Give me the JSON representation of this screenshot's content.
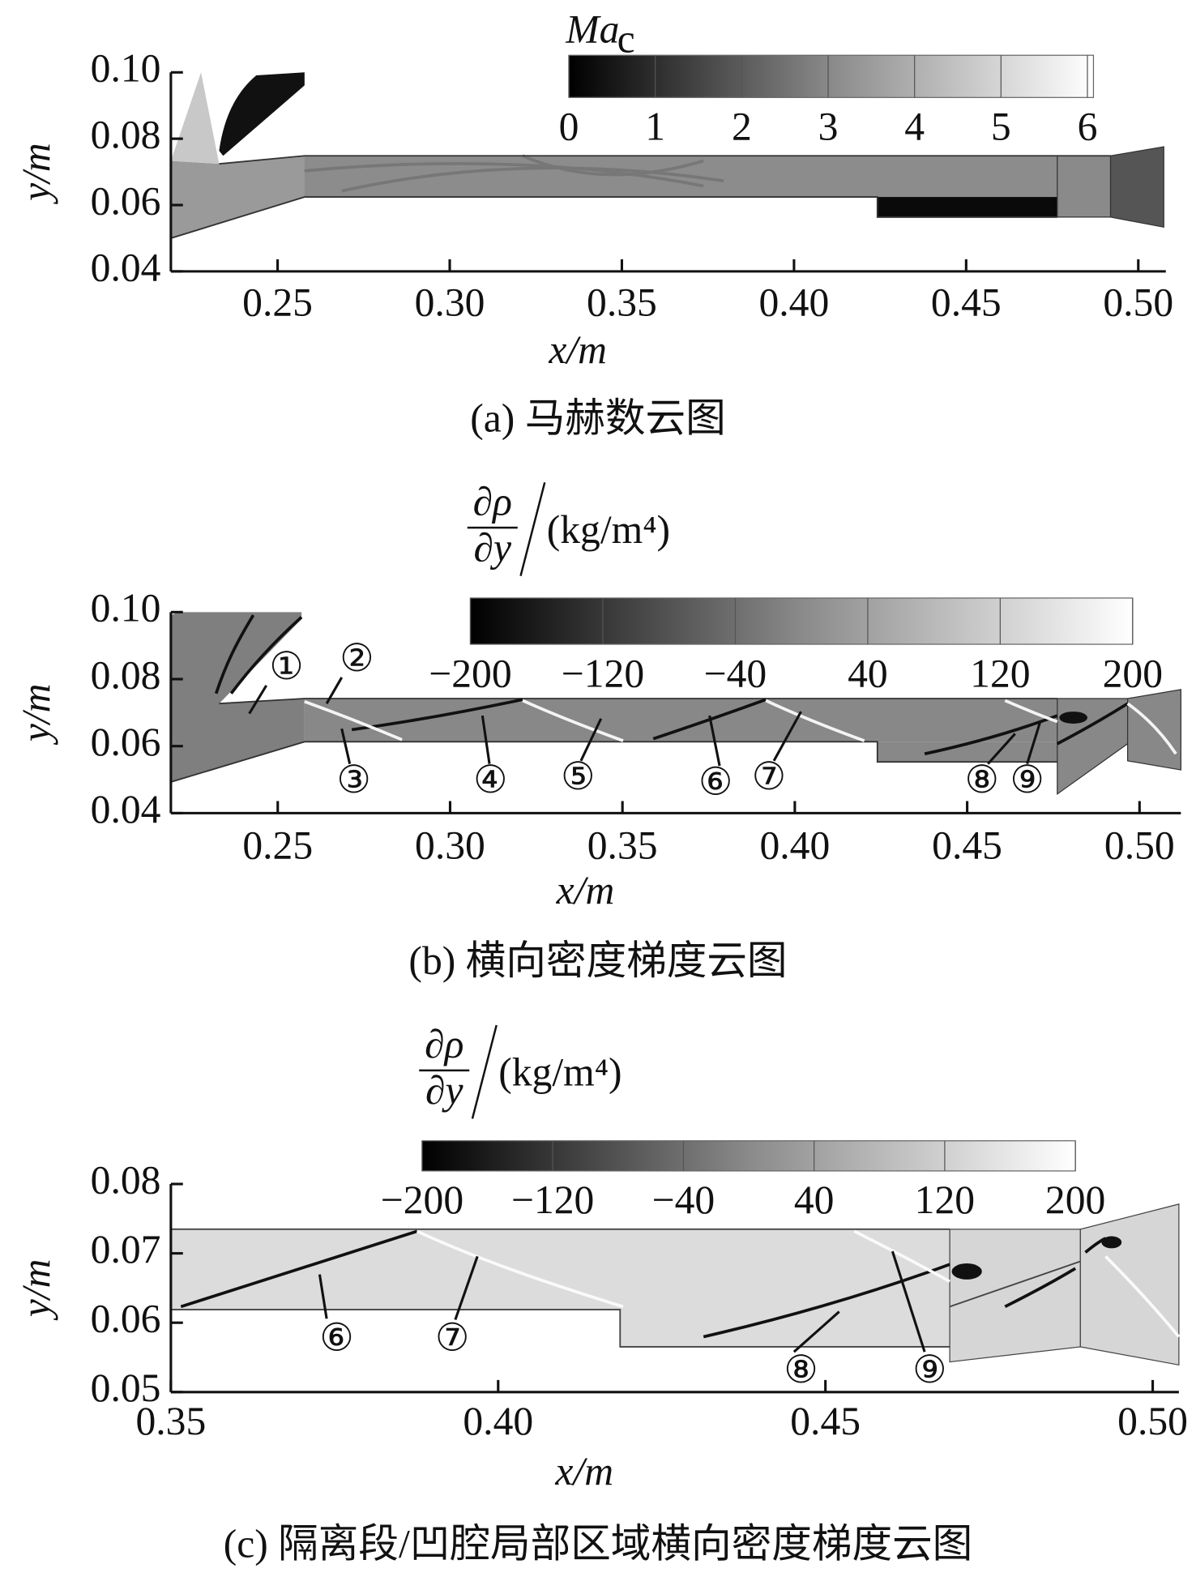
{
  "chart_data": [
    {
      "type": "contour",
      "caption": "(a) 马赫数云图",
      "x_label": "x/m",
      "y_label": "y/m",
      "xlim": [
        0.219,
        0.508
      ],
      "ylim": [
        0.04,
        0.1
      ],
      "xticks": [
        0.25,
        {
          "value": 0.3,
          "label": "0.30"
        },
        0.35,
        {
          "value": 0.4,
          "label": "0.40"
        },
        0.45,
        {
          "value": 0.5,
          "label": "0.50"
        }
      ],
      "yticks": [
        0.04,
        0.06,
        0.08,
        {
          "value": 0.1,
          "label": "0.10"
        }
      ],
      "colorbar": {
        "title": "Ma",
        "title_subscript": "c",
        "lim": [
          0,
          6.07
        ],
        "ticks": [
          0,
          1,
          2,
          3,
          4,
          5,
          6
        ]
      },
      "annotations": []
    },
    {
      "type": "contour",
      "caption": "(b) 横向密度梯度云图",
      "x_label": "x/m",
      "y_label": "y/m",
      "xlim": [
        0.219,
        0.512
      ],
      "ylim": [
        0.04,
        0.1
      ],
      "xticks": [
        0.25,
        {
          "value": 0.3,
          "label": "0.30"
        },
        0.35,
        {
          "value": 0.4,
          "label": "0.40"
        },
        0.45,
        {
          "value": 0.5,
          "label": "0.50"
        }
      ],
      "yticks": [
        0.04,
        0.06,
        0.08,
        {
          "value": 0.1,
          "label": "0.10"
        }
      ],
      "colorbar": {
        "title_numerator": "∂ρ",
        "title_denominator": "∂y",
        "title_unit": "(kg/m⁴)",
        "lim": [
          -200,
          200
        ],
        "ticks": [
          {
            "value": -200,
            "label": "−200"
          },
          {
            "value": -120,
            "label": "−120"
          },
          {
            "value": -40,
            "label": "−40"
          },
          40,
          120,
          200
        ]
      },
      "annotations": [
        "①",
        "②",
        "③",
        "④",
        "⑤",
        "⑥",
        "⑦",
        "⑧",
        "⑨"
      ]
    },
    {
      "type": "contour",
      "caption": "(c) 隔离段/凹腔局部区域横向密度梯度云图",
      "x_label": "x/m",
      "y_label": "y/m",
      "xlim": [
        0.35,
        0.504
      ],
      "ylim": [
        0.05,
        0.08
      ],
      "xticks": [
        0.35,
        {
          "value": 0.4,
          "label": "0.40"
        },
        0.45,
        {
          "value": 0.5,
          "label": "0.50"
        }
      ],
      "yticks": [
        0.05,
        0.06,
        0.07,
        0.08
      ],
      "colorbar": {
        "title_numerator": "∂ρ",
        "title_denominator": "∂y",
        "title_unit": "(kg/m⁴)",
        "lim": [
          -200,
          200
        ],
        "ticks": [
          {
            "value": -200,
            "label": "−200"
          },
          {
            "value": -120,
            "label": "−120"
          },
          {
            "value": -40,
            "label": "−40"
          },
          40,
          120,
          200
        ]
      },
      "annotations": [
        "⑥",
        "⑦",
        "⑧",
        "⑨"
      ]
    }
  ]
}
